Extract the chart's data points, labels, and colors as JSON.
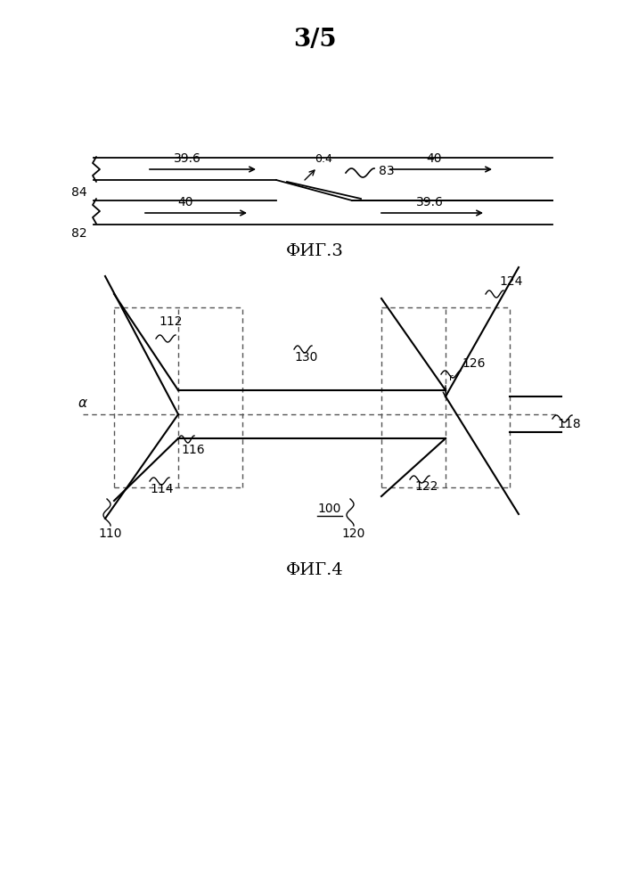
{
  "title": "3/5",
  "title_fontsize": 20,
  "fig_color": "#ffffff",
  "line_color": "#000000",
  "dash_color": "#555555",
  "fig3_label": "ФИГ.3",
  "fig4_label": "ФИГ.4",
  "label_fontsize": 14,
  "small_fontsize": 10
}
